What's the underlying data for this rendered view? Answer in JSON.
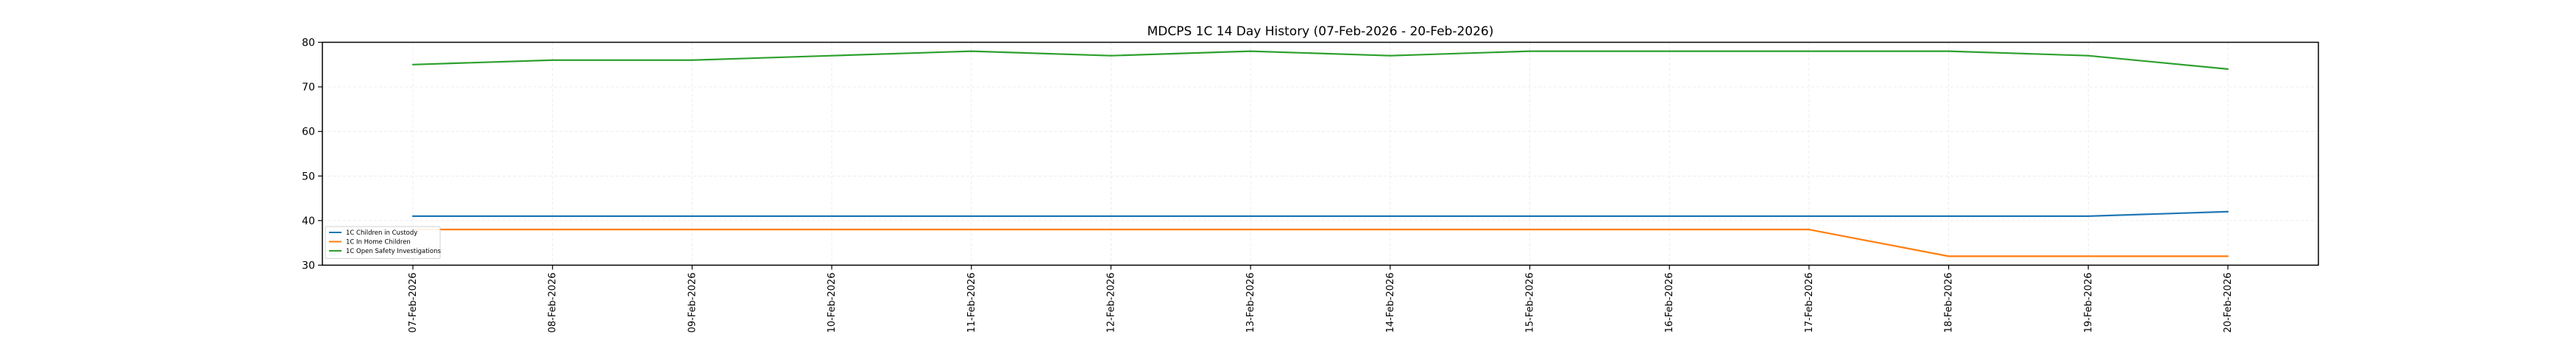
{
  "chart_data": {
    "type": "line",
    "title": "MDCPS 1C 14 Day History (07-Feb-2026 - 20-Feb-2026)",
    "xlabel": "",
    "ylabel": "",
    "x": [
      "07-Feb-2026",
      "08-Feb-2026",
      "09-Feb-2026",
      "10-Feb-2026",
      "11-Feb-2026",
      "12-Feb-2026",
      "13-Feb-2026",
      "14-Feb-2026",
      "15-Feb-2026",
      "16-Feb-2026",
      "17-Feb-2026",
      "18-Feb-2026",
      "19-Feb-2026",
      "20-Feb-2026"
    ],
    "ylim": [
      30,
      80
    ],
    "yticks": [
      30,
      40,
      50,
      60,
      70,
      80
    ],
    "grid": true,
    "legend_position": "lower-left",
    "series": [
      {
        "name": "1C Children in Custody",
        "color": "#1f77b4",
        "values": [
          41,
          41,
          41,
          41,
          41,
          41,
          41,
          41,
          41,
          41,
          41,
          41,
          41,
          42
        ]
      },
      {
        "name": "1C In Home Children",
        "color": "#ff7f0e",
        "values": [
          38,
          38,
          38,
          38,
          38,
          38,
          38,
          38,
          38,
          38,
          38,
          32,
          32,
          32
        ]
      },
      {
        "name": "1C Open Safety Investigations",
        "color": "#2ca02c",
        "values": [
          75,
          76,
          76,
          77,
          78,
          77,
          78,
          77,
          78,
          78,
          78,
          78,
          77,
          74
        ]
      }
    ]
  }
}
